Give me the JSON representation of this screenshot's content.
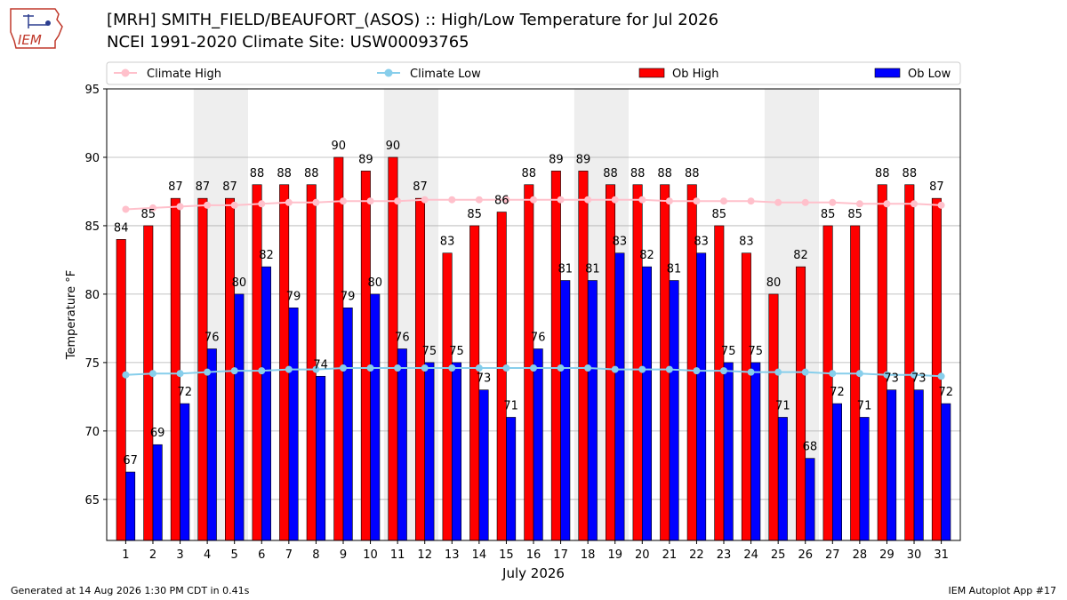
{
  "header": {
    "title_line1": "[MRH] SMITH_FIELD/BEAUFORT_(ASOS) :: High/Low Temperature for Jul 2026",
    "title_line2": "NCEI 1991-2020 Climate Site: USW00093765",
    "logo_text": "IEM"
  },
  "footer": {
    "generated": "Generated at 14 Aug 2026 1:30 PM CDT in 0.41s",
    "app": "IEM Autoplot App #17"
  },
  "colors": {
    "ob_high": "#ff0000",
    "ob_low": "#0000ff",
    "climate_high": "#ffc0cb",
    "climate_low": "#87ceeb",
    "weekend_shade": "#eeeeee"
  },
  "chart_data": {
    "type": "bar",
    "xlabel": "July 2026",
    "ylabel": "Temperature °F",
    "ylim": [
      62,
      95
    ],
    "yticks": [
      65,
      70,
      75,
      80,
      85,
      90,
      95
    ],
    "grid": true,
    "legend_placement": "top",
    "shaded_days": [
      [
        4,
        5
      ],
      [
        11,
        12
      ],
      [
        18,
        19
      ],
      [
        25,
        26
      ]
    ],
    "x": [
      1,
      2,
      3,
      4,
      5,
      6,
      7,
      8,
      9,
      10,
      11,
      12,
      13,
      14,
      15,
      16,
      17,
      18,
      19,
      20,
      21,
      22,
      23,
      24,
      25,
      26,
      27,
      28,
      29,
      30,
      31
    ],
    "series": [
      {
        "name": "Climate High",
        "kind": "line",
        "values": [
          86.2,
          86.3,
          86.4,
          86.5,
          86.5,
          86.6,
          86.7,
          86.7,
          86.8,
          86.8,
          86.8,
          86.9,
          86.9,
          86.9,
          86.9,
          86.9,
          86.9,
          86.9,
          86.9,
          86.9,
          86.8,
          86.8,
          86.8,
          86.8,
          86.7,
          86.7,
          86.7,
          86.6,
          86.6,
          86.6,
          86.5
        ]
      },
      {
        "name": "Climate Low",
        "kind": "line",
        "values": [
          74.1,
          74.2,
          74.2,
          74.3,
          74.4,
          74.4,
          74.5,
          74.5,
          74.6,
          74.6,
          74.6,
          74.6,
          74.6,
          74.6,
          74.6,
          74.6,
          74.6,
          74.6,
          74.5,
          74.5,
          74.5,
          74.4,
          74.4,
          74.3,
          74.3,
          74.3,
          74.2,
          74.2,
          74.1,
          74.1,
          74.0
        ]
      },
      {
        "name": "Ob High",
        "kind": "bar",
        "values": [
          84,
          85,
          87,
          87,
          87,
          88,
          88,
          88,
          90,
          89,
          90,
          87,
          83,
          85,
          86,
          88,
          89,
          89,
          88,
          88,
          88,
          88,
          85,
          83,
          80,
          82,
          85,
          85,
          88,
          88,
          87
        ]
      },
      {
        "name": "Ob Low",
        "kind": "bar",
        "values": [
          67,
          69,
          72,
          76,
          80,
          82,
          79,
          74,
          79,
          80,
          76,
          75,
          75,
          73,
          71,
          76,
          81,
          81,
          83,
          82,
          81,
          83,
          75,
          75,
          71,
          68,
          72,
          71,
          73,
          73,
          72
        ]
      }
    ]
  }
}
